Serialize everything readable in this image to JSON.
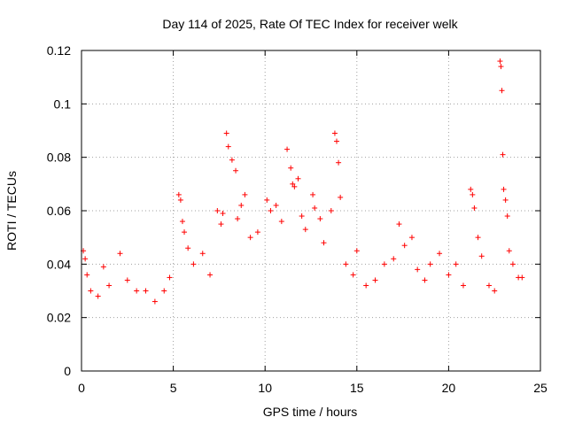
{
  "chart_data": {
    "type": "scatter",
    "title": "Day 114 of 2025, Rate Of TEC Index for receiver welk",
    "xlabel": "GPS time / hours",
    "ylabel": "ROTI / TECUs",
    "xlim": [
      0,
      25
    ],
    "ylim": [
      0,
      0.12
    ],
    "xticks": [
      0,
      5,
      10,
      15,
      20,
      25
    ],
    "xtick_labels": [
      "0",
      "5",
      "10",
      "15",
      "20",
      "25"
    ],
    "yticks": [
      0,
      0.02,
      0.04,
      0.06,
      0.08,
      0.1,
      0.12
    ],
    "ytick_labels": [
      "0",
      "0.02",
      "0.04",
      "0.06",
      "0.08",
      "0.1",
      "0.12"
    ],
    "grid": true,
    "marker": "+",
    "color": "#ff0000",
    "series": [
      {
        "name": "ROTI",
        "points": [
          [
            0.1,
            0.045
          ],
          [
            0.2,
            0.042
          ],
          [
            0.3,
            0.036
          ],
          [
            0.5,
            0.03
          ],
          [
            0.9,
            0.028
          ],
          [
            1.2,
            0.039
          ],
          [
            1.5,
            0.032
          ],
          [
            2.1,
            0.044
          ],
          [
            2.5,
            0.034
          ],
          [
            3.0,
            0.03
          ],
          [
            3.5,
            0.03
          ],
          [
            4.0,
            0.026
          ],
          [
            4.5,
            0.03
          ],
          [
            4.8,
            0.035
          ],
          [
            5.3,
            0.066
          ],
          [
            5.4,
            0.064
          ],
          [
            5.5,
            0.056
          ],
          [
            5.6,
            0.052
          ],
          [
            5.8,
            0.046
          ],
          [
            6.1,
            0.04
          ],
          [
            6.6,
            0.044
          ],
          [
            7.0,
            0.036
          ],
          [
            7.4,
            0.06
          ],
          [
            7.6,
            0.055
          ],
          [
            7.7,
            0.059
          ],
          [
            7.9,
            0.089
          ],
          [
            8.0,
            0.084
          ],
          [
            8.2,
            0.079
          ],
          [
            8.4,
            0.075
          ],
          [
            8.5,
            0.057
          ],
          [
            8.7,
            0.062
          ],
          [
            8.9,
            0.066
          ],
          [
            9.2,
            0.05
          ],
          [
            9.6,
            0.052
          ],
          [
            10.1,
            0.064
          ],
          [
            10.3,
            0.06
          ],
          [
            10.6,
            0.062
          ],
          [
            10.9,
            0.056
          ],
          [
            11.2,
            0.083
          ],
          [
            11.4,
            0.076
          ],
          [
            11.5,
            0.07
          ],
          [
            11.6,
            0.069
          ],
          [
            11.8,
            0.072
          ],
          [
            12.0,
            0.058
          ],
          [
            12.2,
            0.053
          ],
          [
            12.6,
            0.066
          ],
          [
            12.7,
            0.061
          ],
          [
            13.0,
            0.057
          ],
          [
            13.2,
            0.048
          ],
          [
            13.6,
            0.06
          ],
          [
            13.8,
            0.089
          ],
          [
            13.9,
            0.086
          ],
          [
            14.0,
            0.078
          ],
          [
            14.1,
            0.065
          ],
          [
            14.4,
            0.04
          ],
          [
            14.8,
            0.036
          ],
          [
            15.0,
            0.045
          ],
          [
            15.5,
            0.032
          ],
          [
            16.0,
            0.034
          ],
          [
            16.5,
            0.04
          ],
          [
            17.0,
            0.042
          ],
          [
            17.3,
            0.055
          ],
          [
            17.6,
            0.047
          ],
          [
            18.0,
            0.05
          ],
          [
            18.3,
            0.038
          ],
          [
            18.7,
            0.034
          ],
          [
            19.0,
            0.04
          ],
          [
            19.5,
            0.044
          ],
          [
            20.0,
            0.036
          ],
          [
            20.4,
            0.04
          ],
          [
            20.8,
            0.032
          ],
          [
            21.2,
            0.068
          ],
          [
            21.3,
            0.066
          ],
          [
            21.4,
            0.061
          ],
          [
            21.6,
            0.05
          ],
          [
            21.8,
            0.043
          ],
          [
            22.2,
            0.032
          ],
          [
            22.5,
            0.03
          ],
          [
            22.8,
            0.116
          ],
          [
            22.85,
            0.114
          ],
          [
            22.9,
            0.105
          ],
          [
            22.95,
            0.081
          ],
          [
            23.0,
            0.068
          ],
          [
            23.1,
            0.064
          ],
          [
            23.2,
            0.058
          ],
          [
            23.3,
            0.045
          ],
          [
            23.5,
            0.04
          ],
          [
            23.8,
            0.035
          ],
          [
            24.0,
            0.035
          ]
        ]
      }
    ]
  }
}
